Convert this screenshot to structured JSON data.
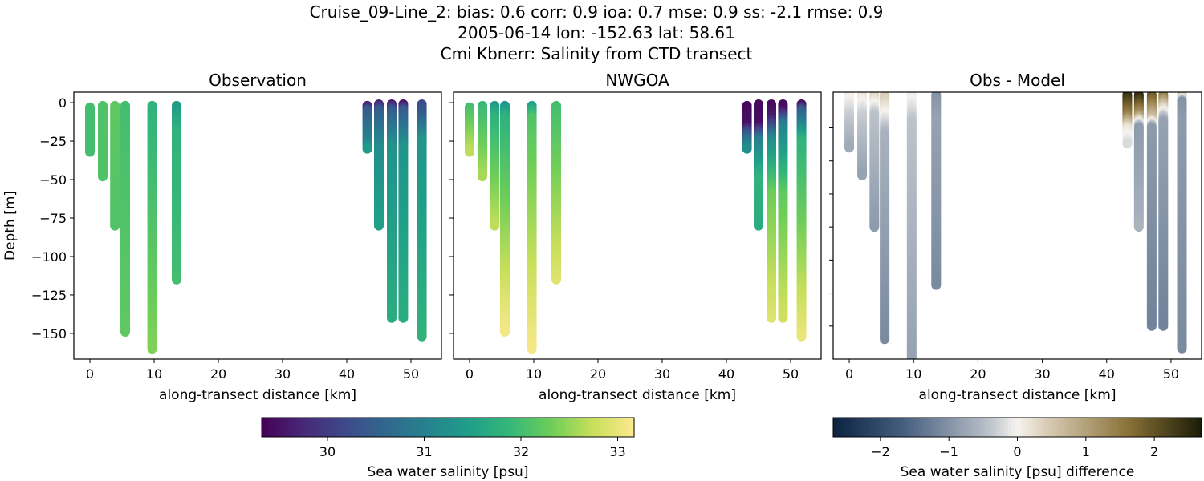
{
  "title_lines": [
    "Cruise_09-Line_2: bias: 0.6  corr: 0.9  ioa: 0.7  mse: 0.9  ss: -2.1  rmse: 0.9",
    "2005-06-14 lon: -152.63 lat: 58.61",
    "Cmi Kbnerr: Salinity from CTD transect"
  ],
  "chart_data": [
    {
      "type": "scatter",
      "title": "Observation",
      "xlabel": "along-transect distance [km]",
      "ylabel": "Depth [m]",
      "xlim": [
        -2.5,
        54.75
      ],
      "ylim": [
        -166.7,
        6.8
      ],
      "xticks": [
        0,
        10,
        20,
        30,
        40,
        50
      ],
      "yticks": [
        0,
        -25,
        -50,
        -75,
        -100,
        -125,
        -150
      ],
      "colormap": "viridis",
      "field": "obs"
    },
    {
      "type": "scatter",
      "title": "NWGOA",
      "xlabel": "along-transect distance [km]",
      "xlim": [
        -2.5,
        54.75
      ],
      "ylim": [
        -166.7,
        6.8
      ],
      "xticks": [
        0,
        10,
        20,
        30,
        40,
        50
      ],
      "colormap": "viridis",
      "field": "model"
    },
    {
      "type": "scatter",
      "title": "Obs - Model",
      "xlabel": "along-transect distance [km]",
      "xlim": [
        -2.5,
        54.75
      ],
      "ylim": [
        -200,
        2
      ],
      "xticks": [
        0,
        10,
        20,
        30,
        40,
        50
      ],
      "colormap": "diff",
      "field": "diff"
    }
  ],
  "casts": [
    {
      "x": 0,
      "obs": [
        [
          -3,
          32.0
        ],
        [
          -32,
          32.0
        ]
      ],
      "model": [
        [
          -3,
          32.0
        ],
        [
          -32,
          32.7
        ]
      ],
      "diff": [
        [
          0,
          0.1
        ],
        [
          -15,
          -0.3
        ],
        [
          -40,
          -0.7
        ]
      ]
    },
    {
      "x": 2,
      "obs": [
        [
          -2,
          32.1
        ],
        [
          -48,
          32.1
        ]
      ],
      "model": [
        [
          -2,
          31.9
        ],
        [
          -48,
          32.6
        ]
      ],
      "diff": [
        [
          0,
          0.2
        ],
        [
          -15,
          -0.3
        ],
        [
          -61,
          -0.8
        ]
      ]
    },
    {
      "x": 3.9,
      "obs": [
        [
          -2,
          32.2
        ],
        [
          -80,
          32.1
        ]
      ],
      "model": [
        [
          -2,
          31.4
        ],
        [
          -10,
          31.8
        ],
        [
          -80,
          32.7
        ]
      ],
      "diff": [
        [
          0,
          0.4
        ],
        [
          -15,
          -0.4
        ],
        [
          -100,
          -0.9
        ]
      ]
    },
    {
      "x": 5.5,
      "obs": [
        [
          -2,
          32.0
        ],
        [
          -149,
          32.2
        ]
      ],
      "model": [
        [
          -2,
          31.3
        ],
        [
          -10,
          31.8
        ],
        [
          -149,
          33.1
        ]
      ],
      "diff": [
        [
          0,
          0.5
        ],
        [
          -15,
          0
        ],
        [
          -30,
          -0.6
        ],
        [
          -185,
          -1.1
        ]
      ]
    },
    {
      "x": 9.7,
      "obs": [
        [
          -2,
          31.8
        ],
        [
          -80,
          32.1
        ],
        [
          -160,
          32.4
        ]
      ],
      "model": [
        [
          -2,
          31.5
        ],
        [
          -10,
          32.1
        ],
        [
          -160,
          33.1
        ]
      ],
      "diff": [
        [
          0,
          0.1
        ],
        [
          -20,
          -0.4
        ],
        [
          -200,
          -0.8
        ]
      ]
    },
    {
      "x": 13.5,
      "obs": [
        [
          -2,
          31.4
        ],
        [
          -20,
          31.8
        ],
        [
          -115,
          32.0
        ]
      ],
      "model": [
        [
          -2,
          32.0
        ],
        [
          -115,
          32.9
        ]
      ],
      "diff": [
        [
          0,
          -1.0
        ],
        [
          -20,
          -0.8
        ],
        [
          -144,
          -1.1
        ]
      ]
    },
    {
      "x": 43.2,
      "obs": [
        [
          -2,
          29.6
        ],
        [
          -5,
          30.4
        ],
        [
          -25,
          31.0
        ],
        [
          -30,
          31.4
        ]
      ],
      "model": [
        [
          -2,
          29.4
        ],
        [
          -15,
          29.5
        ],
        [
          -20,
          30.3
        ],
        [
          -30,
          31.2
        ]
      ],
      "diff": [
        [
          0,
          2.5
        ],
        [
          -15,
          1.5
        ],
        [
          -25,
          0.2
        ],
        [
          -37,
          -0.2
        ]
      ]
    },
    {
      "x": 45,
      "obs": [
        [
          -1,
          29.7
        ],
        [
          -5,
          30.4
        ],
        [
          -30,
          31.2
        ],
        [
          -80,
          31.5
        ]
      ],
      "model": [
        [
          -1,
          29.4
        ],
        [
          -15,
          29.5
        ],
        [
          -25,
          31.0
        ],
        [
          -50,
          31.8
        ],
        [
          -80,
          31.7
        ]
      ],
      "diff": [
        [
          0,
          2.6
        ],
        [
          -15,
          1.2
        ],
        [
          -25,
          -0.9
        ],
        [
          -100,
          -0.6
        ]
      ]
    },
    {
      "x": 47,
      "obs": [
        [
          -1,
          29.6
        ],
        [
          -5,
          30.4
        ],
        [
          -30,
          31.3
        ],
        [
          -140,
          31.7
        ]
      ],
      "model": [
        [
          -1,
          29.4
        ],
        [
          -10,
          29.6
        ],
        [
          -25,
          31.2
        ],
        [
          -60,
          32.3
        ],
        [
          -140,
          32.9
        ]
      ],
      "diff": [
        [
          0,
          2.0
        ],
        [
          -18,
          0.6
        ],
        [
          -25,
          -0.9
        ],
        [
          -175,
          -1.2
        ]
      ]
    },
    {
      "x": 48.8,
      "obs": [
        [
          -1,
          29.5
        ],
        [
          -5,
          30.4
        ],
        [
          -30,
          31.3
        ],
        [
          -140,
          31.7
        ]
      ],
      "model": [
        [
          -1,
          29.4
        ],
        [
          -5,
          29.5
        ],
        [
          -15,
          31.0
        ],
        [
          -60,
          32.2
        ],
        [
          -140,
          32.8
        ]
      ],
      "diff": [
        [
          0,
          1.6
        ],
        [
          -10,
          0.3
        ],
        [
          -20,
          -0.8
        ],
        [
          -175,
          -1.2
        ]
      ]
    },
    {
      "x": 51.7,
      "obs": [
        [
          -1,
          30.2
        ],
        [
          -10,
          30.5
        ],
        [
          -25,
          31.3
        ],
        [
          -152,
          31.8
        ]
      ],
      "model": [
        [
          -1,
          29.4
        ],
        [
          -5,
          30.4
        ],
        [
          -25,
          31.8
        ],
        [
          -152,
          33.0
        ]
      ],
      "diff": [
        [
          0,
          1.0
        ],
        [
          -5,
          -1.0
        ],
        [
          -20,
          -0.9
        ],
        [
          -192,
          -1.1
        ]
      ]
    }
  ],
  "colorbars": {
    "salinity": {
      "label": "Sea water salinity [psu]",
      "range": [
        29.32,
        33.17
      ],
      "ticks": [
        30,
        31,
        32,
        33
      ],
      "colormap": "viridis"
    },
    "difference": {
      "label": "Sea water salinity [psu] difference",
      "range": [
        -2.69,
        2.69
      ],
      "ticks": [
        -2,
        -1,
        0,
        1,
        2
      ],
      "colormap": "diff"
    }
  }
}
